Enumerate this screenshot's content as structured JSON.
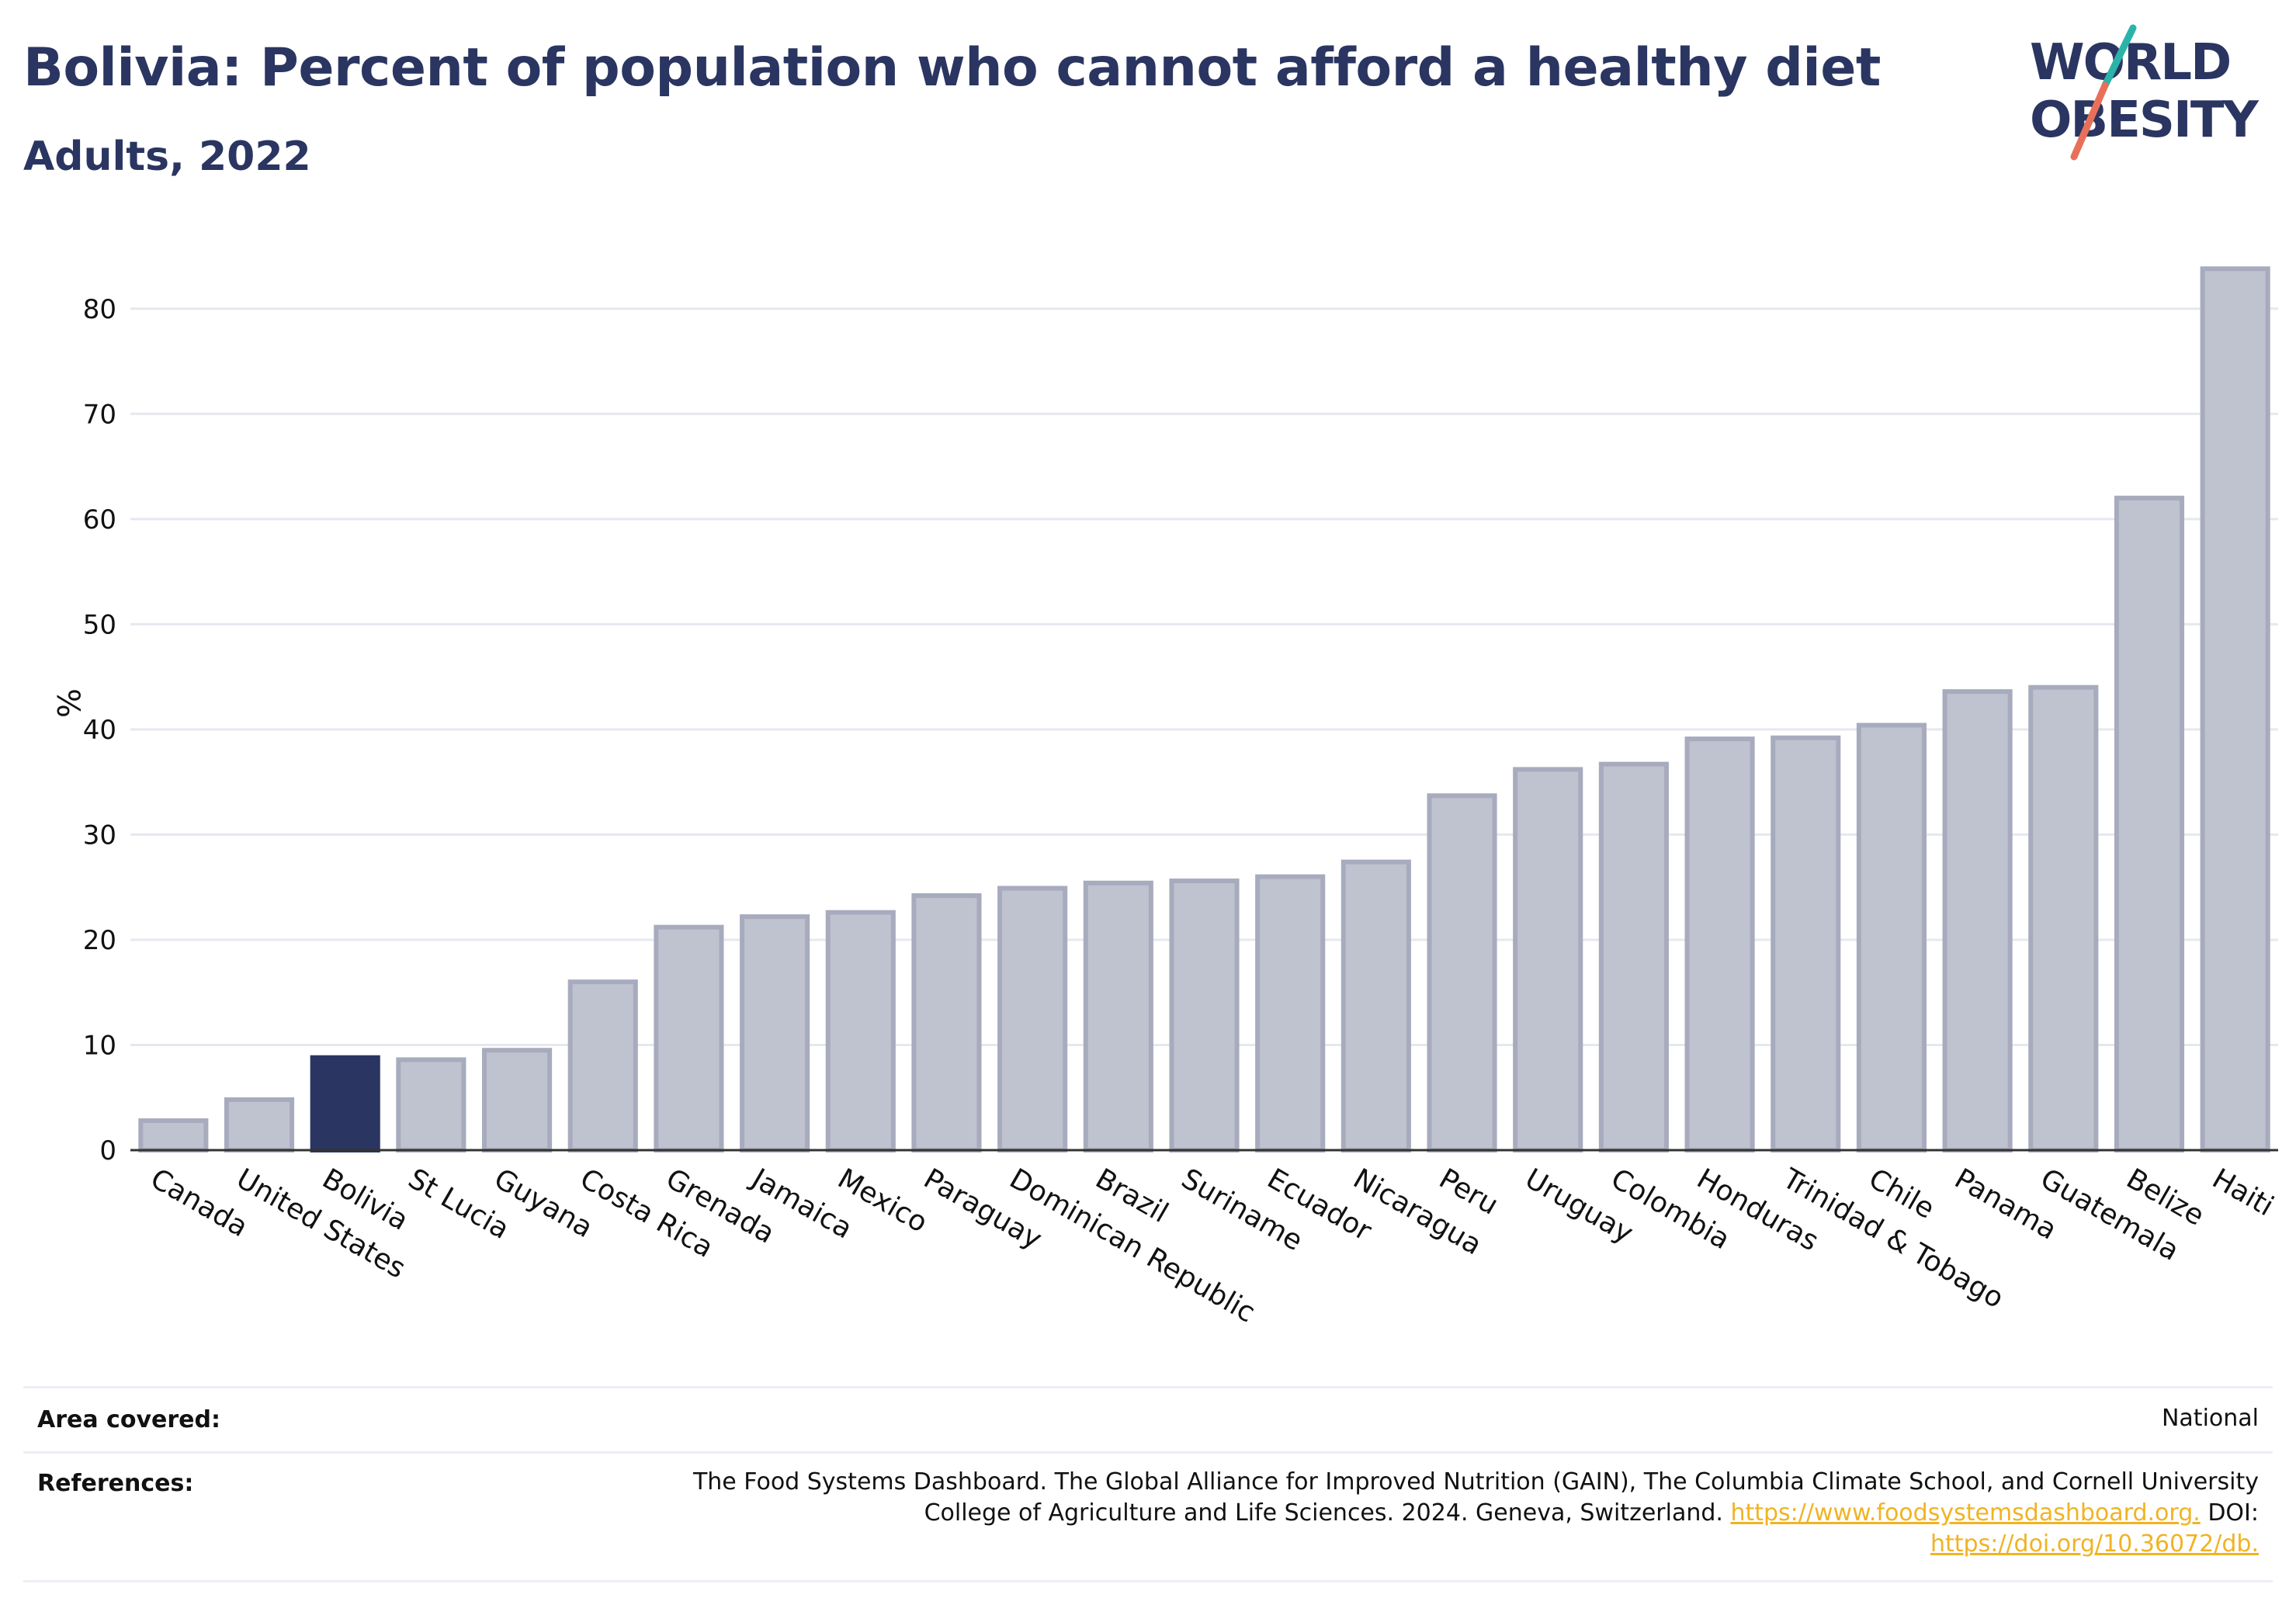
{
  "title": "Bolivia: Percent of population who cannot afford a healthy diet",
  "subtitle": "Adults, 2022",
  "logo": {
    "line1": "WORLD",
    "line2": "OBESITY",
    "accent_teal": "#2bb3a8",
    "accent_coral": "#e8705a",
    "text_color": "#2a3561"
  },
  "chart_data": {
    "type": "bar",
    "categories": [
      "Canada",
      "United States",
      "Bolivia",
      "St Lucia",
      "Guyana",
      "Costa Rica",
      "Grenada",
      "Jamaica",
      "Mexico",
      "Paraguay",
      "Dominican Republic",
      "Brazil",
      "Suriname",
      "Ecuador",
      "Nicaragua",
      "Peru",
      "Uruguay",
      "Colombia",
      "Honduras",
      "Trinidad & Tobago",
      "Chile",
      "Panama",
      "Guatemala",
      "Belize",
      "Haiti"
    ],
    "values": [
      2.8,
      4.8,
      8.8,
      8.6,
      9.5,
      16.0,
      21.2,
      22.2,
      22.6,
      24.2,
      24.9,
      25.4,
      25.6,
      26.0,
      27.4,
      33.7,
      36.2,
      36.7,
      39.1,
      39.2,
      40.4,
      43.6,
      44.0,
      62.0,
      83.8
    ],
    "highlight": "Bolivia",
    "ylabel": "%",
    "xlabel": "",
    "ylim": [
      0,
      85
    ],
    "yticks": [
      0,
      10,
      20,
      30,
      40,
      50,
      60,
      70,
      80
    ],
    "grid": true,
    "colors": {
      "bar": "#bfc2cf",
      "bar_border": "#a7abbd",
      "highlight": "#2a3561",
      "grid": "#e6e8ef",
      "axis": "#333333"
    }
  },
  "footer": {
    "area_label": "Area covered:",
    "area_value": "National",
    "references_label": "References:",
    "references_line1": "The Food Systems Dashboard. The Global Alliance for Improved Nutrition (GAIN), The Columbia Climate School, and Cornell University",
    "references_line2_text": "College of Agriculture and Life Sciences. 2024. Geneva, Switzerland. ",
    "references_link1": "https://www.foodsystemsdashboard.org.",
    "references_doi_label": " DOI:",
    "references_link2": "https://doi.org/10.36072/db."
  }
}
